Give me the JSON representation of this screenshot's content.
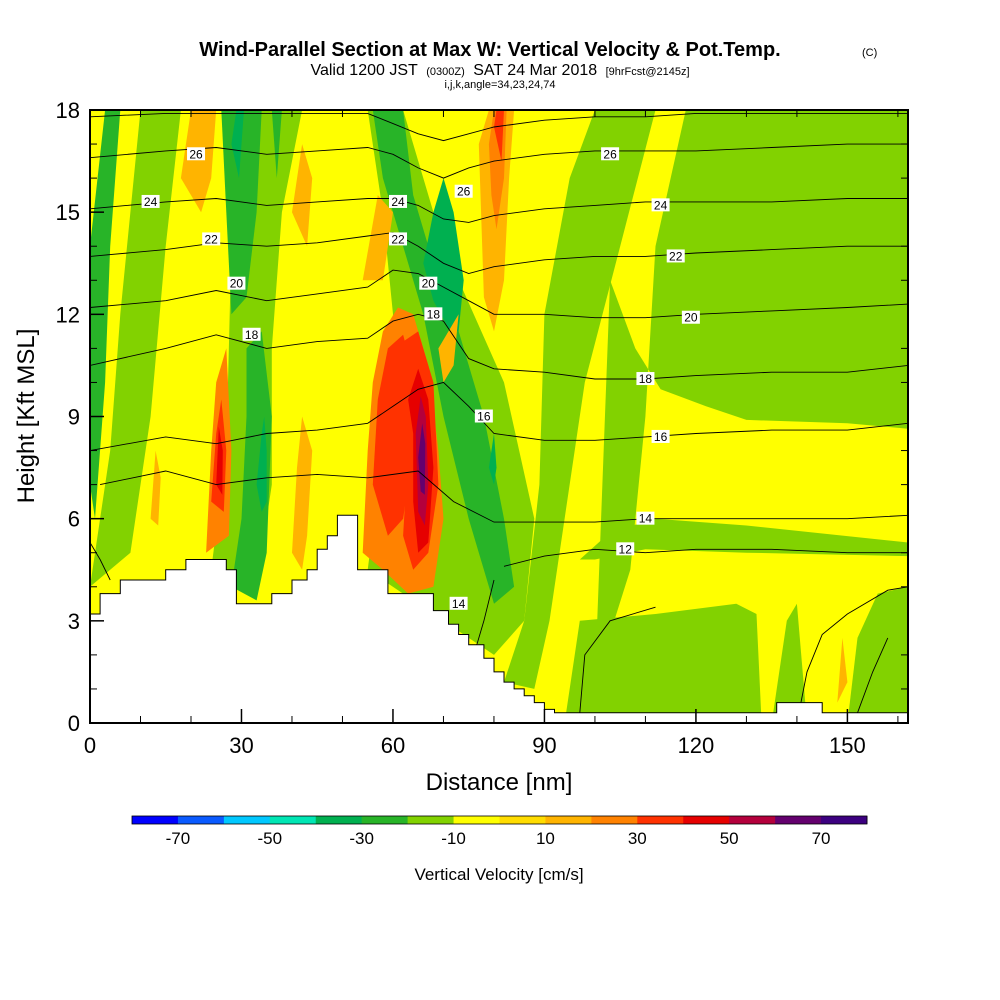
{
  "title": "Wind-Parallel Section at Max W: Vertical Velocity & Pot.Temp.",
  "title_mark": "(C)",
  "subtitle": {
    "valid": "Valid 1200 JST",
    "utc": "(0300Z)",
    "date": "SAT 24 Mar 2018",
    "fcst": "[9hrFcst@2145z]"
  },
  "indices": "i,j,k,angle=34,23,24,74",
  "chart_data": {
    "type": "heatmap",
    "xlabel": "Distance [nm]",
    "ylabel": "Height [Kft MSL]",
    "xlim": [
      0,
      162
    ],
    "ylim": [
      0,
      18
    ],
    "xticks": [
      0,
      30,
      60,
      90,
      120,
      150
    ],
    "yticks": [
      0,
      3,
      6,
      9,
      12,
      15,
      18
    ],
    "colorbar": {
      "label": "Vertical Velocity [cm/s]",
      "tick_labels": [
        "-70",
        "-50",
        "-30",
        "-10",
        "10",
        "30",
        "50",
        "70"
      ],
      "boundaries": [
        -80,
        -70,
        -60,
        -50,
        -40,
        -30,
        -20,
        -10,
        0,
        10,
        20,
        30,
        40,
        50,
        60,
        70,
        80
      ],
      "colors": [
        "#0000ff",
        "#0a5aff",
        "#00c8ff",
        "#00e6b4",
        "#00b050",
        "#28b428",
        "#82d200",
        "#ffff00",
        "#ffdc00",
        "#ffb400",
        "#ff8200",
        "#ff3200",
        "#e60000",
        "#b4003c",
        "#64006e",
        "#3c0080"
      ]
    },
    "terrain_kft": {
      "x": [
        0,
        2,
        2,
        6,
        6,
        10,
        10,
        15,
        15,
        19,
        19,
        22,
        22,
        27,
        27,
        29,
        29,
        36,
        36,
        40,
        40,
        43,
        43,
        45,
        45,
        47,
        47,
        49,
        49,
        53,
        53,
        59,
        59,
        68,
        68,
        71,
        71,
        73,
        73,
        75,
        75,
        78,
        78,
        80,
        80,
        82,
        82,
        84,
        84,
        86,
        86,
        88,
        88,
        90,
        90,
        92,
        92,
        94,
        94,
        136,
        136,
        138,
        138,
        145,
        145,
        162
      ],
      "y": [
        3.2,
        3.2,
        3.8,
        3.8,
        4.2,
        4.2,
        4.2,
        4.2,
        4.5,
        4.5,
        4.8,
        4.8,
        4.8,
        4.8,
        4.5,
        4.5,
        3.5,
        3.5,
        3.8,
        3.8,
        4.2,
        4.2,
        4.5,
        4.5,
        5.1,
        5.1,
        5.5,
        5.5,
        6.1,
        6.1,
        4.5,
        4.5,
        3.8,
        3.8,
        3.3,
        3.3,
        2.9,
        2.9,
        2.6,
        2.6,
        2.3,
        2.3,
        1.9,
        1.9,
        1.5,
        1.5,
        1.2,
        1.2,
        1.0,
        1.0,
        0.8,
        0.8,
        0.6,
        0.6,
        0.4,
        0.4,
        0.3,
        0.3,
        0.3,
        0.3,
        0.6,
        0.6,
        0.6,
        0.6,
        0.3,
        0.3
      ]
    },
    "theta_contours": [
      {
        "label": "12",
        "x": [
          82,
          90,
          100,
          110,
          120,
          135,
          150,
          162
        ],
        "y": [
          4.6,
          4.9,
          5.1,
          5.0,
          5.1,
          5.1,
          5.0,
          5.0
        ]
      },
      {
        "label": "14",
        "x": [
          2,
          15,
          25,
          35,
          45,
          55,
          65,
          72,
          80,
          90,
          100,
          110,
          120,
          135,
          150,
          162
        ],
        "y": [
          7.0,
          7.4,
          7.0,
          7.2,
          7.3,
          7.2,
          7.4,
          6.5,
          5.9,
          5.9,
          5.9,
          6.0,
          6.0,
          6.0,
          6.0,
          6.1
        ]
      },
      {
        "label": "16",
        "x": [
          0,
          15,
          25,
          35,
          45,
          55,
          60,
          65,
          70,
          75,
          80,
          90,
          100,
          110,
          120,
          135,
          150,
          162
        ],
        "y": [
          8.0,
          8.4,
          8.2,
          8.5,
          8.6,
          8.8,
          9.3,
          9.8,
          10.0,
          9.3,
          8.5,
          8.3,
          8.3,
          8.4,
          8.5,
          8.6,
          8.6,
          8.8
        ]
      },
      {
        "label": "18",
        "x": [
          0,
          15,
          25,
          35,
          45,
          55,
          60,
          65,
          70,
          75,
          80,
          90,
          100,
          110,
          120,
          135,
          150,
          162
        ],
        "y": [
          10.5,
          11.0,
          11.4,
          11.0,
          11.2,
          11.3,
          11.8,
          12.0,
          11.8,
          10.7,
          10.4,
          10.3,
          10.1,
          10.1,
          10.2,
          10.3,
          10.3,
          10.5
        ]
      },
      {
        "label": "20",
        "x": [
          0,
          15,
          25,
          35,
          45,
          55,
          60,
          65,
          70,
          75,
          80,
          90,
          100,
          110,
          120,
          135,
          150,
          162
        ],
        "y": [
          12.2,
          12.4,
          12.7,
          12.4,
          12.6,
          12.8,
          13.3,
          13.2,
          12.8,
          12.4,
          12.0,
          12.0,
          11.9,
          11.9,
          12.0,
          12.1,
          12.2,
          12.3
        ]
      },
      {
        "label": "22",
        "x": [
          0,
          15,
          25,
          35,
          45,
          55,
          60,
          65,
          70,
          75,
          80,
          90,
          100,
          110,
          120,
          135,
          150,
          162
        ],
        "y": [
          13.7,
          13.9,
          14.1,
          14.0,
          14.1,
          14.3,
          14.4,
          14.0,
          13.5,
          13.2,
          13.4,
          13.6,
          13.7,
          13.7,
          13.8,
          13.9,
          14.0,
          14.0
        ]
      },
      {
        "label": "24",
        "x": [
          0,
          15,
          25,
          35,
          45,
          55,
          60,
          65,
          70,
          75,
          80,
          90,
          100,
          110,
          120,
          135,
          150,
          162
        ],
        "y": [
          15.1,
          15.3,
          15.4,
          15.2,
          15.3,
          15.4,
          15.4,
          15.2,
          14.8,
          14.7,
          14.9,
          15.1,
          15.2,
          15.3,
          15.3,
          15.3,
          15.4,
          15.4
        ]
      },
      {
        "label": "26",
        "x": [
          0,
          15,
          25,
          35,
          45,
          55,
          60,
          65,
          70,
          75,
          80,
          90,
          100,
          110,
          120,
          135,
          150,
          162
        ],
        "y": [
          16.6,
          16.8,
          16.9,
          16.7,
          16.8,
          16.9,
          16.7,
          16.3,
          16.0,
          16.3,
          16.5,
          16.7,
          16.8,
          16.8,
          16.8,
          16.9,
          17.0,
          17.0
        ]
      },
      {
        "label": "",
        "x": [
          0,
          15,
          30,
          45,
          55,
          60,
          65,
          70,
          75,
          80,
          90,
          100,
          110,
          120,
          135,
          150,
          162
        ],
        "y": [
          17.8,
          17.9,
          17.9,
          17.9,
          17.9,
          17.6,
          17.3,
          17.1,
          17.3,
          17.5,
          17.7,
          17.8,
          17.8,
          17.9,
          17.9,
          17.9,
          17.9
        ]
      }
    ],
    "contour_labels": [
      {
        "text": "26",
        "x": 21,
        "y": 16.7
      },
      {
        "text": "24",
        "x": 12,
        "y": 15.3
      },
      {
        "text": "22",
        "x": 24,
        "y": 14.2
      },
      {
        "text": "20",
        "x": 29,
        "y": 12.9
      },
      {
        "text": "18",
        "x": 32,
        "y": 11.4
      },
      {
        "text": "24",
        "x": 61,
        "y": 15.3
      },
      {
        "text": "26",
        "x": 74,
        "y": 15.6
      },
      {
        "text": "22",
        "x": 61,
        "y": 14.2
      },
      {
        "text": "20",
        "x": 67,
        "y": 12.9
      },
      {
        "text": "18",
        "x": 68,
        "y": 12.0
      },
      {
        "text": "16",
        "x": 78,
        "y": 9.0
      },
      {
        "text": "26",
        "x": 103,
        "y": 16.7
      },
      {
        "text": "24",
        "x": 113,
        "y": 15.2
      },
      {
        "text": "22",
        "x": 116,
        "y": 13.7
      },
      {
        "text": "20",
        "x": 119,
        "y": 11.9
      },
      {
        "text": "18",
        "x": 110,
        "y": 10.1
      },
      {
        "text": "16",
        "x": 113,
        "y": 8.4
      },
      {
        "text": "14",
        "x": 110,
        "y": 6.0
      },
      {
        "text": "12",
        "x": 106,
        "y": 5.1
      },
      {
        "text": "14",
        "x": 73,
        "y": 3.5
      }
    ]
  }
}
